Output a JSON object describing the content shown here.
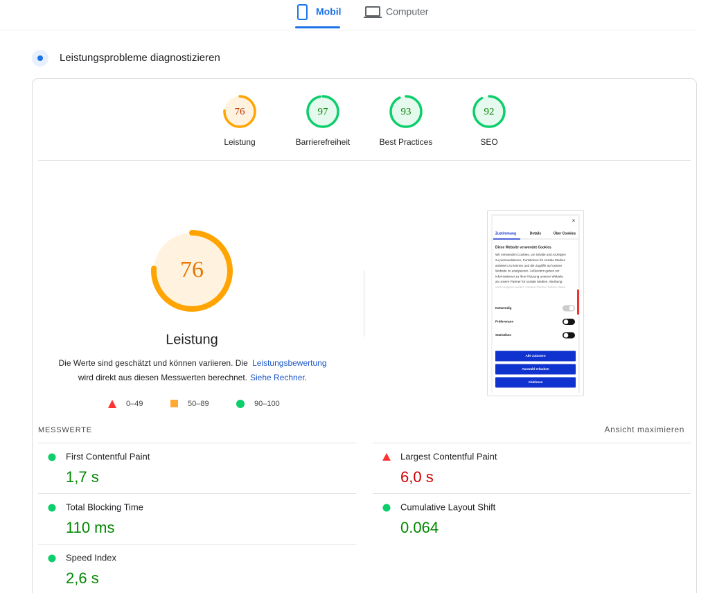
{
  "tabs": [
    "Mobil",
    "Computer"
  ],
  "section_title": "Leistungsprobleme diagnostizieren",
  "scores": [
    {
      "label": "Leistung",
      "value": 76,
      "color": "#ffa400"
    },
    {
      "label": "Barrierefreiheit",
      "value": 97,
      "color": "#0cce6b"
    },
    {
      "label": "Best Practices",
      "value": 93,
      "color": "#0cce6b"
    },
    {
      "label": "SEO",
      "value": 92,
      "color": "#0cce6b"
    }
  ],
  "description": [
    "Die Werte sind geschätzt und können variieren. Die ",
    "Leistungsbewertung",
    "wird direkt aus diesen Messwerten berechnet.",
    "Siehe Rechner",
    "."
  ],
  "legend": [
    "0–49",
    "50–89",
    "90–100"
  ],
  "screenshot": {
    "tabs": [
      "Zustimmung",
      "Details",
      "Über Cookies"
    ],
    "heading": "Diese Website verwendet Cookies",
    "text": [
      "Wir verwenden Cookies, um Inhalte und Anzeigen",
      "zu personalisieren, Funktionen für soziale Medien",
      "anbieten zu können und die Zugriffe auf unsere",
      "Website zu analysieren. Außerdem geben wir",
      "Informationen zu Ihrer Nutzung unserer Website",
      "an unsere Partner für soziale Medien, Werbung",
      "und Analysen weiter. Unsere Partner führen diese"
    ],
    "toggles": [
      "Notwendig",
      "Präferenzen",
      "Statistiken"
    ],
    "buttons": [
      "Alle zulassen",
      "Auswahl erlauben",
      "Ablehnen"
    ]
  },
  "metrics_header": "MESSWERTE",
  "expand": "Ansicht maximieren",
  "metrics": [
    {
      "name": "First Contentful Paint",
      "value": "1,7 s",
      "color": "#0cce6b"
    },
    {
      "name": "Largest Contentful Paint",
      "value": "6,0 s",
      "color": "#ff4e42"
    },
    {
      "name": "Total Blocking Time",
      "value": "110 ms",
      "color": "#0cce6b"
    },
    {
      "name": "Cumulative Layout Shift",
      "value": "0.064",
      "color": "#0cce6b"
    },
    {
      "name": "Speed Index",
      "value": "2,6 s",
      "color": "#0cce6b"
    }
  ]
}
